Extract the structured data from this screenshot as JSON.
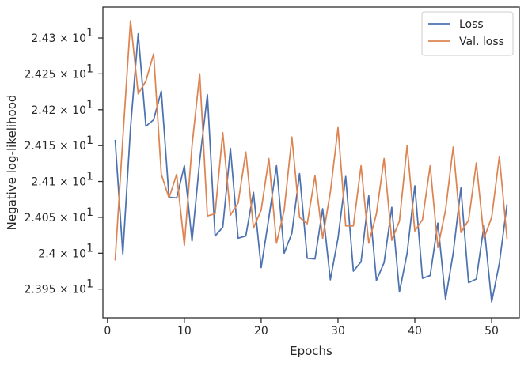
{
  "chart_data": {
    "type": "line",
    "title": "",
    "xlabel": "Epochs",
    "ylabel": "Negative log-likelihood",
    "xlim": [
      -0.6,
      53.6
    ],
    "ylim": [
      23.91,
      24.343
    ],
    "grid": false,
    "legend_position": "top-right",
    "x_ticks": [
      0,
      10,
      20,
      30,
      40,
      50
    ],
    "x_tick_labels": [
      "0",
      "10",
      "20",
      "30",
      "40",
      "50"
    ],
    "y_ticks": [
      23.95,
      24.0,
      24.05,
      24.1,
      24.15,
      24.2,
      24.25,
      24.3
    ],
    "y_tick_labels": [
      {
        "base": "2.395 × 10",
        "exp": "1"
      },
      {
        "base": "2.4 × 10",
        "exp": "1"
      },
      {
        "base": "2.405 × 10",
        "exp": "1"
      },
      {
        "base": "2.41 × 10",
        "exp": "1"
      },
      {
        "base": "2.415 × 10",
        "exp": "1"
      },
      {
        "base": "2.42 × 10",
        "exp": "1"
      },
      {
        "base": "2.425 × 10",
        "exp": "1"
      },
      {
        "base": "2.43 × 10",
        "exp": "1"
      }
    ],
    "x": [
      1,
      2,
      3,
      4,
      5,
      6,
      7,
      8,
      9,
      10,
      11,
      12,
      13,
      14,
      15,
      16,
      17,
      18,
      19,
      20,
      21,
      22,
      23,
      24,
      25,
      26,
      27,
      28,
      29,
      30,
      31,
      32,
      33,
      34,
      35,
      36,
      37,
      38,
      39,
      40,
      41,
      42,
      43,
      44,
      45,
      46,
      47,
      48,
      49,
      50,
      51,
      52
    ],
    "series": [
      {
        "name": "Loss",
        "color": "#4c72b0",
        "values": [
          24.158,
          23.999,
          24.175,
          24.306,
          24.177,
          24.186,
          24.226,
          24.078,
          24.077,
          24.122,
          24.017,
          24.129,
          24.221,
          24.024,
          24.036,
          24.146,
          24.021,
          24.024,
          24.085,
          23.98,
          24.049,
          24.122,
          24.0,
          24.028,
          24.111,
          23.993,
          23.992,
          24.062,
          23.963,
          24.021,
          24.107,
          23.975,
          23.988,
          24.08,
          23.962,
          23.987,
          24.064,
          23.946,
          24.0,
          24.094,
          23.965,
          23.969,
          24.042,
          23.936,
          24.0,
          24.091,
          23.959,
          23.964,
          24.039,
          23.932,
          23.986,
          24.068
        ]
      },
      {
        "name": "Val. loss",
        "color": "#dd8452",
        "values": [
          23.99,
          24.16,
          24.324,
          24.222,
          24.24,
          24.278,
          24.11,
          24.077,
          24.11,
          24.011,
          24.15,
          24.25,
          24.052,
          24.055,
          24.168,
          24.053,
          24.07,
          24.141,
          24.035,
          24.06,
          24.132,
          24.014,
          24.06,
          24.162,
          24.05,
          24.041,
          24.108,
          24.021,
          24.085,
          24.175,
          24.038,
          24.038,
          24.122,
          24.014,
          24.055,
          24.132,
          24.018,
          24.045,
          24.15,
          24.031,
          24.047,
          24.122,
          24.008,
          24.06,
          24.148,
          24.029,
          24.046,
          24.126,
          24.021,
          24.05,
          24.135,
          24.02
        ]
      }
    ]
  }
}
